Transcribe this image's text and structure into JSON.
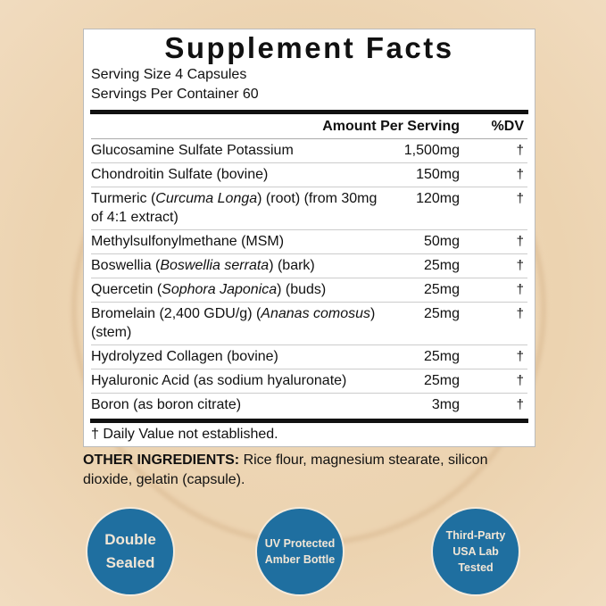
{
  "title": "Supplement Facts",
  "serving_size": "Serving Size 4 Capsules",
  "servings_per_container": "Servings Per Container 60",
  "header": {
    "amount": "Amount Per Serving",
    "dv": "%DV"
  },
  "rows": [
    {
      "name": [
        {
          "t": "Glucosamine Sulfate Potassium"
        }
      ],
      "amount": "1,500mg",
      "dv": "†"
    },
    {
      "name": [
        {
          "t": "Chondroitin Sulfate (bovine)"
        }
      ],
      "amount": "150mg",
      "dv": "†"
    },
    {
      "name": [
        {
          "t": "Turmeric ("
        },
        {
          "t": "Curcuma Longa",
          "i": true
        },
        {
          "t": ") (root) (from 30mg of 4:1 extract)"
        }
      ],
      "amount": "120mg",
      "dv": "†"
    },
    {
      "name": [
        {
          "t": "Methylsulfonylmethane (MSM)"
        }
      ],
      "amount": "50mg",
      "dv": "†"
    },
    {
      "name": [
        {
          "t": "Boswellia ("
        },
        {
          "t": "Boswellia serrata",
          "i": true
        },
        {
          "t": ") (bark)"
        }
      ],
      "amount": "25mg",
      "dv": "†"
    },
    {
      "name": [
        {
          "t": "Quercetin ("
        },
        {
          "t": "Sophora Japonica",
          "i": true
        },
        {
          "t": ") (buds)"
        }
      ],
      "amount": "25mg",
      "dv": "†"
    },
    {
      "name": [
        {
          "t": "Bromelain (2,400 GDU/g) ("
        },
        {
          "t": "Ananas comosus",
          "i": true
        },
        {
          "t": ") (stem)"
        }
      ],
      "amount": "25mg",
      "dv": "†"
    },
    {
      "name": [
        {
          "t": "Hydrolyzed Collagen (bovine)"
        }
      ],
      "amount": "25mg",
      "dv": "†"
    },
    {
      "name": [
        {
          "t": "Hyaluronic Acid (as sodium hyaluronate)"
        }
      ],
      "amount": "25mg",
      "dv": "†"
    },
    {
      "name": [
        {
          "t": "Boron (as boron citrate)"
        }
      ],
      "amount": "3mg",
      "dv": "†"
    }
  ],
  "footnote": "† Daily Value not established.",
  "other_ingredients": {
    "label": "OTHER INGREDIENTS:",
    "text": " Rice flour, magnesium stearate, silicon dioxide, gelatin (capsule)."
  },
  "badges": [
    "Double Sealed",
    "UV Protected Amber Bottle",
    "Third-Party USA Lab Tested"
  ],
  "colors": {
    "badge": "#1f6fa0",
    "background": "#ecd3b0"
  }
}
